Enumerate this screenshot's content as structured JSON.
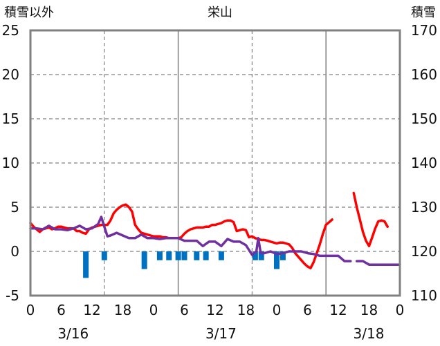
{
  "chart_data": {
    "type": "line",
    "title": "栄山",
    "left_axis_label": "積雪以外",
    "right_axis_label": "積雪",
    "left_ylim": [
      -5,
      25
    ],
    "left_yticks": [
      -5,
      0,
      5,
      10,
      15,
      20,
      25
    ],
    "right_ylim": [
      110,
      170
    ],
    "right_yticks": [
      110,
      120,
      130,
      140,
      150,
      160,
      170
    ],
    "x_range_hours": [
      0,
      60
    ],
    "xtick_labels": [
      "0",
      "6",
      "12",
      "18",
      "0",
      "6",
      "12",
      "18",
      "0",
      "6",
      "12",
      "18",
      "0"
    ],
    "date_labels": [
      {
        "hour": 12,
        "label": "3/16"
      },
      {
        "hour": 36,
        "label": "3/17"
      },
      {
        "hour": 60,
        "label": "3/18"
      }
    ],
    "grid": {
      "dashed_hours": [
        12,
        36,
        60
      ],
      "solid_hours": [
        24,
        48
      ],
      "horizontal": true
    },
    "colors": {
      "red": "#ff0000",
      "purple": "#7030a0",
      "bars": "#0070c0",
      "grid": "#808080",
      "frame": "#808080"
    },
    "series": [
      {
        "axis": "left",
        "style": "line",
        "color": "red",
        "points": [
          [
            0,
            3.2
          ],
          [
            0.5,
            2.8
          ],
          [
            1,
            2.5
          ],
          [
            1.5,
            2.2
          ],
          [
            2,
            2.5
          ],
          [
            2.5,
            2.6
          ],
          [
            3,
            2.7
          ],
          [
            3.5,
            2.5
          ],
          [
            4,
            2.6
          ],
          [
            4.5,
            2.8
          ],
          [
            5,
            2.8
          ],
          [
            5.5,
            2.7
          ],
          [
            6,
            2.6
          ],
          [
            6.5,
            2.6
          ],
          [
            7,
            2.6
          ],
          [
            7.5,
            2.3
          ],
          [
            8,
            2.3
          ],
          [
            8.5,
            2.1
          ],
          [
            9,
            2.0
          ],
          [
            9.5,
            2.5
          ],
          [
            10,
            2.7
          ],
          [
            10.5,
            2.8
          ],
          [
            11,
            2.9
          ],
          [
            11.5,
            3.0
          ],
          [
            12,
            3.0
          ],
          [
            12.5,
            3.0
          ],
          [
            13,
            3.5
          ],
          [
            13.5,
            4.3
          ],
          [
            14,
            4.7
          ],
          [
            14.5,
            5.0
          ],
          [
            15,
            5.2
          ],
          [
            15.5,
            5.3
          ],
          [
            16,
            5.0
          ],
          [
            16.5,
            4.5
          ],
          [
            17,
            3.0
          ],
          [
            17.5,
            2.5
          ],
          [
            18,
            2.1
          ],
          [
            18.5,
            2.0
          ],
          [
            19,
            1.9
          ],
          [
            19.5,
            1.8
          ],
          [
            20,
            1.7
          ],
          [
            20.5,
            1.7
          ],
          [
            21,
            1.7
          ],
          [
            21.5,
            1.6
          ],
          [
            22,
            1.6
          ],
          [
            22.5,
            1.5
          ],
          [
            23,
            1.5
          ],
          [
            23.5,
            1.5
          ],
          [
            24,
            1.5
          ],
          [
            24.5,
            1.6
          ],
          [
            25,
            2.0
          ],
          [
            25.5,
            2.3
          ],
          [
            26,
            2.5
          ],
          [
            26.5,
            2.6
          ],
          [
            27,
            2.7
          ],
          [
            27.5,
            2.7
          ],
          [
            28,
            2.7
          ],
          [
            28.5,
            2.8
          ],
          [
            29,
            2.8
          ],
          [
            29.5,
            3.0
          ],
          [
            30,
            3.0
          ],
          [
            30.5,
            3.1
          ],
          [
            31,
            3.2
          ],
          [
            31.5,
            3.4
          ],
          [
            32,
            3.5
          ],
          [
            32.5,
            3.5
          ],
          [
            33,
            3.3
          ],
          [
            33.5,
            2.3
          ],
          [
            34,
            2.4
          ],
          [
            34.5,
            2.5
          ],
          [
            35,
            2.4
          ],
          [
            35.5,
            1.6
          ],
          [
            36,
            1.7
          ],
          [
            36.5,
            1.5
          ],
          [
            37,
            1.4
          ],
          [
            37.5,
            1.3
          ],
          [
            38,
            1.3
          ],
          [
            38.5,
            1.2
          ],
          [
            39,
            1.1
          ],
          [
            39.5,
            1.0
          ],
          [
            40,
            0.9
          ],
          [
            40.5,
            1.0
          ],
          [
            41,
            1.0
          ],
          [
            41.5,
            0.9
          ],
          [
            42,
            0.8
          ],
          [
            42.5,
            0.4
          ],
          [
            43,
            -0.2
          ],
          [
            43.5,
            -0.6
          ],
          [
            44,
            -1.0
          ],
          [
            44.5,
            -1.4
          ],
          [
            45,
            -1.7
          ],
          [
            45.5,
            -1.9
          ],
          [
            46,
            -1.2
          ],
          [
            46.5,
            -0.2
          ],
          [
            47,
            0.8
          ],
          [
            47.5,
            2.0
          ],
          [
            48,
            3.0
          ],
          [
            48.5,
            3.3
          ],
          [
            49,
            3.6
          ]
        ]
      },
      {
        "axis": "left",
        "style": "line",
        "color": "red",
        "points": [
          [
            52.5,
            6.6
          ],
          [
            53,
            5.0
          ],
          [
            53.5,
            3.6
          ],
          [
            54,
            2.2
          ],
          [
            54.5,
            1.2
          ],
          [
            55,
            0.6
          ],
          [
            55.5,
            1.6
          ],
          [
            56,
            2.6
          ],
          [
            56.5,
            3.4
          ],
          [
            57,
            3.5
          ],
          [
            57.5,
            3.4
          ],
          [
            58,
            2.8
          ]
        ]
      },
      {
        "axis": "left",
        "style": "line",
        "color": "purple",
        "points": [
          [
            0,
            2.6
          ],
          [
            1,
            2.6
          ],
          [
            2,
            2.5
          ],
          [
            3,
            2.9
          ],
          [
            4,
            2.5
          ],
          [
            5,
            2.5
          ],
          [
            6,
            2.4
          ],
          [
            7,
            2.6
          ],
          [
            8,
            2.9
          ],
          [
            9,
            2.5
          ],
          [
            10,
            2.6
          ],
          [
            11,
            3.1
          ],
          [
            11.5,
            3.9
          ],
          [
            12,
            2.8
          ],
          [
            12.5,
            1.7
          ],
          [
            13,
            1.8
          ],
          [
            14,
            2.1
          ],
          [
            15,
            1.8
          ],
          [
            16,
            1.5
          ],
          [
            17,
            1.5
          ],
          [
            18,
            1.9
          ],
          [
            19,
            1.5
          ],
          [
            20,
            1.5
          ],
          [
            21,
            1.4
          ],
          [
            22,
            1.5
          ],
          [
            23,
            1.5
          ],
          [
            24,
            1.5
          ],
          [
            25,
            1.2
          ],
          [
            26,
            1.2
          ],
          [
            27,
            1.2
          ],
          [
            28,
            0.6
          ],
          [
            29,
            1.1
          ],
          [
            30,
            1.1
          ],
          [
            31,
            0.6
          ],
          [
            32,
            1.4
          ],
          [
            33,
            1.1
          ],
          [
            34,
            1.1
          ],
          [
            35,
            0.7
          ],
          [
            36,
            -0.4
          ],
          [
            36.7,
            0
          ],
          [
            37,
            1.5
          ],
          [
            37.4,
            -0.2
          ],
          [
            38,
            -0.2
          ],
          [
            39,
            0
          ],
          [
            40,
            -0.3
          ],
          [
            41,
            -0.2
          ],
          [
            42,
            0
          ],
          [
            43,
            0
          ],
          [
            44,
            0
          ],
          [
            45,
            -0.2
          ],
          [
            46,
            -0.3
          ],
          [
            47,
            -0.5
          ],
          [
            48,
            -0.5
          ],
          [
            49,
            -0.5
          ],
          [
            50,
            -0.5
          ],
          [
            51,
            -1.1
          ],
          [
            52,
            -1.1
          ]
        ]
      },
      {
        "axis": "left",
        "style": "line",
        "color": "purple",
        "points": [
          [
            53,
            -1.1
          ],
          [
            54,
            -1.1
          ],
          [
            55,
            -1.5
          ],
          [
            56,
            -1.5
          ],
          [
            57,
            -1.5
          ],
          [
            58,
            -1.5
          ],
          [
            59,
            -1.5
          ],
          [
            60,
            -1.5
          ]
        ]
      }
    ],
    "bars": {
      "axis": "left",
      "color": "bars",
      "items": [
        {
          "hour": 9,
          "value": -3.0
        },
        {
          "hour": 12,
          "value": -1.0
        },
        {
          "hour": 18.5,
          "value": -2.0
        },
        {
          "hour": 21,
          "value": -1.0
        },
        {
          "hour": 22.5,
          "value": -1.0
        },
        {
          "hour": 24,
          "value": -1.0
        },
        {
          "hour": 25,
          "value": -1.0
        },
        {
          "hour": 27,
          "value": -1.0
        },
        {
          "hour": 28.5,
          "value": -1.0
        },
        {
          "hour": 31,
          "value": -1.0
        },
        {
          "hour": 36.5,
          "value": -1.0
        },
        {
          "hour": 37.5,
          "value": -1.0
        },
        {
          "hour": 40,
          "value": -2.0
        },
        {
          "hour": 41,
          "value": -1.0
        }
      ]
    }
  }
}
